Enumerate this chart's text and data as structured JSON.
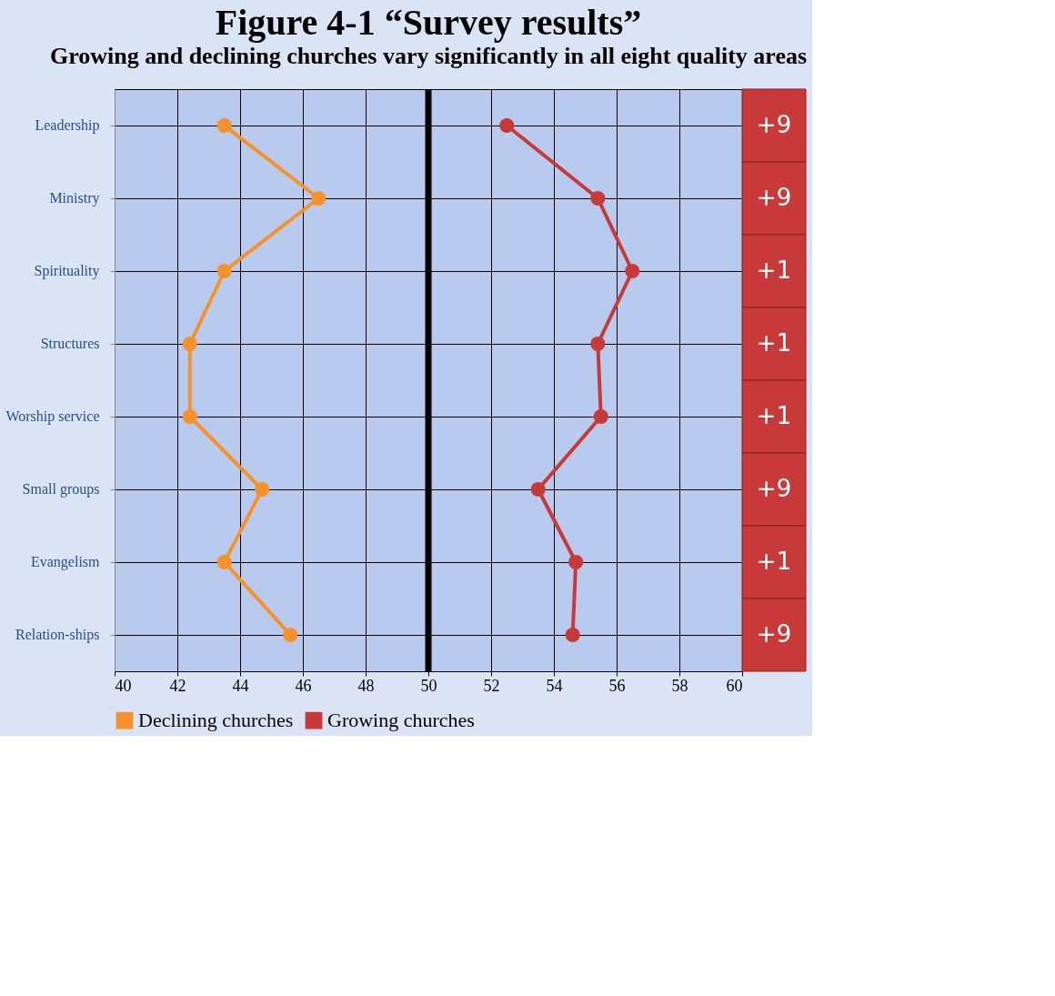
{
  "chart_data": {
    "type": "line",
    "orientation": "horizontal",
    "title": "Figure 4-1 “Survey results”",
    "subtitle": "Growing and declining churches vary significantly in all eight quality areas",
    "categories": [
      "Leadership",
      "Ministry",
      "Spirituality",
      "Structures",
      "Worship service",
      "Small groups",
      "Evangelism",
      "Relation-ships"
    ],
    "series": [
      {
        "name": "Declining churches",
        "color": "#f7922a",
        "values": [
          43.5,
          46.5,
          43.5,
          42.4,
          42.4,
          44.7,
          43.5,
          45.6
        ]
      },
      {
        "name": "Growing churches",
        "color": "#c83a3a",
        "values": [
          52.5,
          55.4,
          56.5,
          55.4,
          55.5,
          53.5,
          54.7,
          54.6
        ]
      }
    ],
    "xlim": [
      40,
      60
    ],
    "xticks": [
      40,
      42,
      44,
      46,
      48,
      50,
      52,
      54,
      56,
      58,
      60
    ],
    "ref_lines": [
      {
        "axis": "x",
        "value": 50,
        "color": "#000000"
      }
    ],
    "annotations": [
      "+9",
      "+9",
      "+1",
      "+1",
      "+1",
      "+9",
      "+1",
      "+9"
    ],
    "grid": true,
    "legend": "bottom",
    "marker": "circle",
    "line_style": "solid"
  }
}
